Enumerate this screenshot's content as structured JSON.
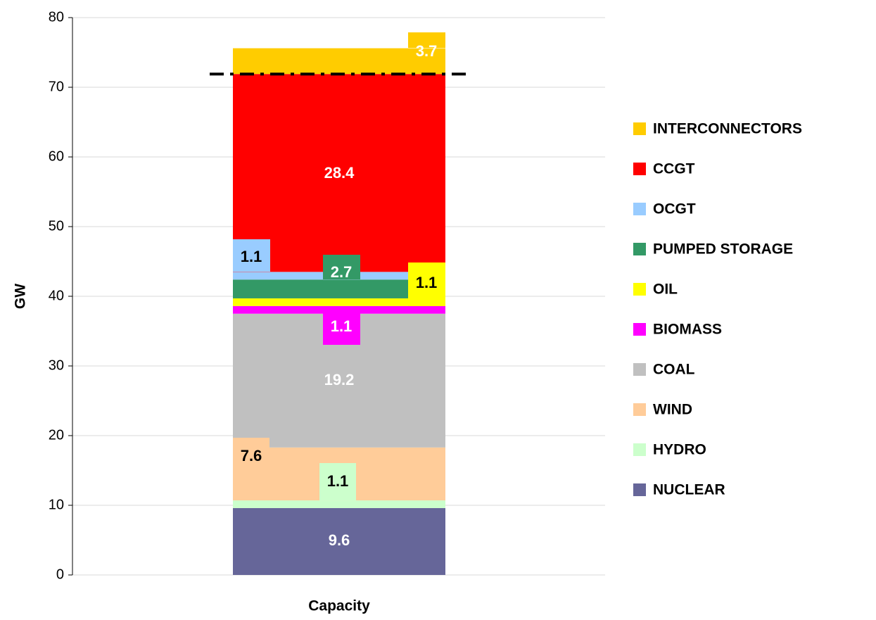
{
  "chart_data": {
    "type": "stacked_bar",
    "ylabel": "GW",
    "categories": [
      "Capacity"
    ],
    "ylim": [
      0,
      80
    ],
    "yticks": [
      0,
      10,
      20,
      30,
      40,
      50,
      60,
      70,
      80
    ],
    "grid": true,
    "series": [
      {
        "name": "NUCLEAR",
        "color": "#666699",
        "values": [
          9.6
        ]
      },
      {
        "name": "HYDRO",
        "color": "#ccffcc",
        "values": [
          1.1
        ]
      },
      {
        "name": "WIND",
        "color": "#ffcc99",
        "values": [
          7.6
        ]
      },
      {
        "name": "COAL",
        "color": "#c0c0c0",
        "values": [
          19.2
        ]
      },
      {
        "name": "BIOMASS",
        "color": "#ff00ff",
        "values": [
          1.1
        ]
      },
      {
        "name": "OIL",
        "color": "#ffff00",
        "values": [
          1.1
        ]
      },
      {
        "name": "PUMPED STORAGE",
        "color": "#339966",
        "values": [
          2.7
        ]
      },
      {
        "name": "OCGT",
        "color": "#99ccff",
        "values": [
          1.1
        ]
      },
      {
        "name": "CCGT",
        "color": "#ff0000",
        "values": [
          28.4
        ]
      },
      {
        "name": "INTERCONNECTORS",
        "color": "#ffcc00",
        "values": [
          3.7
        ]
      }
    ]
  }
}
